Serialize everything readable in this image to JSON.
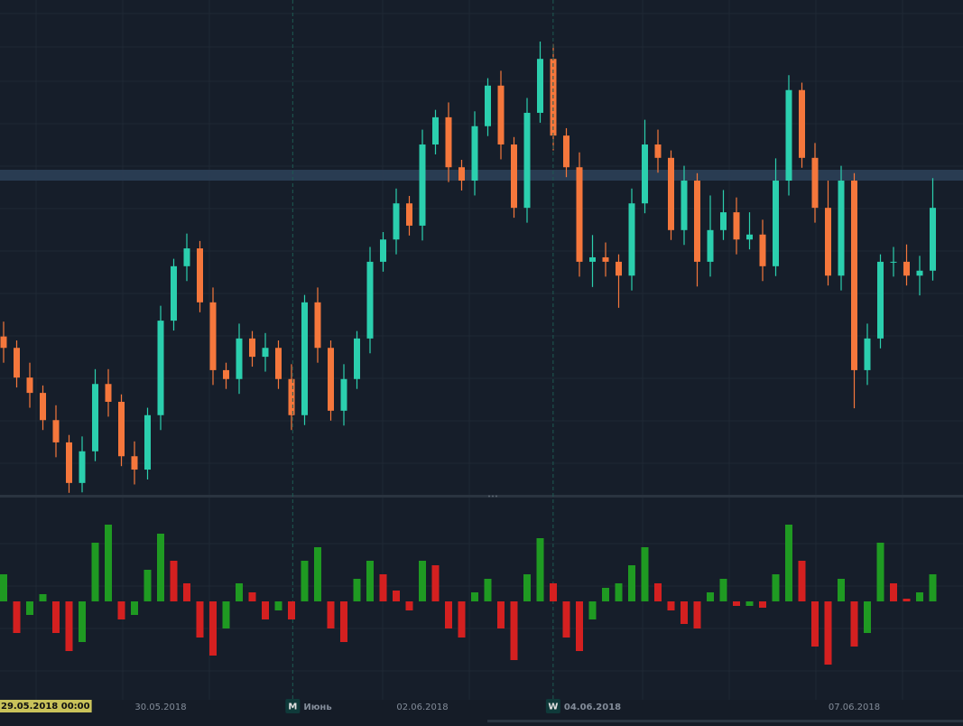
{
  "chart_data": [
    {
      "type": "candlestick",
      "categories": [
        "29.05.2018 00:00",
        null,
        null,
        null,
        null,
        null,
        null,
        null,
        null,
        null,
        null,
        null,
        "30.05.2018",
        null,
        null,
        null,
        null,
        null,
        null,
        null,
        null,
        null,
        null,
        null,
        "Июнь",
        null,
        null,
        null,
        null,
        null,
        null,
        null,
        "02.06.2018",
        null,
        null,
        null,
        null,
        null,
        null,
        null,
        null,
        null,
        null,
        null,
        null,
        "04.06.2018",
        null,
        null,
        null,
        null,
        null,
        null,
        null,
        null,
        null,
        null,
        null,
        null,
        null,
        null,
        null,
        null,
        null,
        null,
        null,
        "07.06.2018",
        null,
        null,
        null,
        null,
        null,
        null
      ],
      "markers": [
        null,
        null,
        null,
        null,
        null,
        null,
        null,
        null,
        null,
        null,
        null,
        null,
        null,
        null,
        null,
        null,
        null,
        null,
        null,
        null,
        null,
        null,
        null,
        null,
        "M",
        null,
        null,
        null,
        null,
        null,
        null,
        null,
        null,
        null,
        null,
        null,
        null,
        null,
        null,
        null,
        null,
        null,
        null,
        null,
        null,
        "W",
        null,
        null,
        null,
        null,
        null,
        null,
        null,
        null,
        null,
        null,
        null,
        null,
        null,
        null,
        null,
        null,
        null,
        null,
        null,
        null,
        null,
        null,
        null,
        null,
        null,
        null
      ],
      "open": [
        32.0,
        29.7,
        23.7,
        20.6,
        15.1,
        10.6,
        2.4,
        8.8,
        22.4,
        18.8,
        7.8,
        5.1,
        16.1,
        35.2,
        46.2,
        49.8,
        38.9,
        25.2,
        23.4,
        31.6,
        27.9,
        29.7,
        23.4,
        16.1,
        38.9,
        29.7,
        17.0,
        23.4,
        31.6,
        47.1,
        51.6,
        58.9,
        54.4,
        70.8,
        76.3,
        66.2,
        63.5,
        74.5,
        82.7,
        70.8,
        58.0,
        77.2,
        88.1,
        72.6,
        66.2,
        47.1,
        48.0,
        47.1,
        44.3,
        58.9,
        70.8,
        68.1,
        53.5,
        63.5,
        47.1,
        53.5,
        57.1,
        51.6,
        52.6,
        46.2,
        63.5,
        81.8,
        68.1,
        58.0,
        44.3,
        63.5,
        25.2,
        31.6,
        47.1,
        47.1,
        44.3,
        45.3
      ],
      "high": [
        35.0,
        31.2,
        26.7,
        22.1,
        18.1,
        12.1,
        11.8,
        25.4,
        25.4,
        20.3,
        10.8,
        17.6,
        38.2,
        47.7,
        52.8,
        51.3,
        41.9,
        26.7,
        34.6,
        33.1,
        32.7,
        31.2,
        26.4,
        40.4,
        41.9,
        31.2,
        26.4,
        33.1,
        50.1,
        53.1,
        61.9,
        60.4,
        73.8,
        77.8,
        79.3,
        67.7,
        77.5,
        84.2,
        85.7,
        72.3,
        80.2,
        91.6,
        91.1,
        74.1,
        69.2,
        52.5,
        51.0,
        48.6,
        61.9,
        75.8,
        73.8,
        69.6,
        66.5,
        65.0,
        60.5,
        61.6,
        60.1,
        57.1,
        55.6,
        68.0,
        84.8,
        83.3,
        71.1,
        63.5,
        66.5,
        65.0,
        34.6,
        48.6,
        50.1,
        50.6,
        48.3,
        64.0
      ],
      "low": [
        26.7,
        21.7,
        17.6,
        13.1,
        7.6,
        0.4,
        0.5,
        6.8,
        15.8,
        5.8,
        2.1,
        3.1,
        13.1,
        33.2,
        43.2,
        36.9,
        22.2,
        21.4,
        20.4,
        25.9,
        24.9,
        21.4,
        13.1,
        14.1,
        26.7,
        15.0,
        14.0,
        21.4,
        28.6,
        45.1,
        48.6,
        52.4,
        51.4,
        68.8,
        63.2,
        61.5,
        60.5,
        72.5,
        67.8,
        56.0,
        55.0,
        75.2,
        69.6,
        64.2,
        44.1,
        42.0,
        44.1,
        37.8,
        41.3,
        56.9,
        65.1,
        51.5,
        50.5,
        42.1,
        44.1,
        51.5,
        48.6,
        49.6,
        43.2,
        44.2,
        60.5,
        66.1,
        55.0,
        42.3,
        41.3,
        17.5,
        22.2,
        29.6,
        44.1,
        42.3,
        40.3,
        43.3
      ],
      "close": [
        29.7,
        23.7,
        20.6,
        15.1,
        10.6,
        2.4,
        8.8,
        22.4,
        18.8,
        7.8,
        5.1,
        16.1,
        35.2,
        46.2,
        49.8,
        38.9,
        25.2,
        23.4,
        31.6,
        27.9,
        29.7,
        23.4,
        16.1,
        38.9,
        29.7,
        17.0,
        23.4,
        31.6,
        47.1,
        51.6,
        58.9,
        54.4,
        70.8,
        76.3,
        66.2,
        63.5,
        74.5,
        82.7,
        70.8,
        58.0,
        77.2,
        88.1,
        72.6,
        66.2,
        47.1,
        48.0,
        47.1,
        44.3,
        58.9,
        70.8,
        68.1,
        53.5,
        63.5,
        47.1,
        53.5,
        57.1,
        51.6,
        52.6,
        46.2,
        63.5,
        81.8,
        68.1,
        58.0,
        44.3,
        63.5,
        25.2,
        31.6,
        47.1,
        47.1,
        44.3,
        45.3,
        58.0
      ],
      "ylim": [
        0,
        100
      ],
      "highlight_level": 64.6,
      "up_color": "#2bcfae",
      "down_color": "#f5773c"
    },
    {
      "type": "bar",
      "values": [
        0.3,
        -0.35,
        -0.15,
        0.08,
        -0.35,
        -0.55,
        -0.45,
        0.65,
        0.85,
        -0.2,
        -0.15,
        0.35,
        0.75,
        0.45,
        0.2,
        -0.4,
        -0.6,
        -0.3,
        0.2,
        0.1,
        -0.2,
        -0.1,
        -0.2,
        0.45,
        0.6,
        -0.3,
        -0.45,
        0.25,
        0.45,
        0.3,
        0.12,
        -0.1,
        0.45,
        0.4,
        -0.3,
        -0.4,
        0.1,
        0.25,
        -0.3,
        -0.65,
        0.3,
        0.7,
        0.2,
        -0.4,
        -0.55,
        -0.2,
        0.15,
        0.2,
        0.4,
        0.6,
        0.2,
        -0.1,
        -0.25,
        -0.3,
        0.1,
        0.25,
        -0.05,
        -0.05,
        -0.07,
        0.3,
        0.85,
        0.45,
        -0.5,
        -0.7,
        0.25,
        -0.5,
        -0.35,
        0.65,
        0.2,
        0.03,
        0.1,
        0.3
      ],
      "ylim": [
        -1.11,
        1.11
      ],
      "up_color": "#1f9a22",
      "down_color": "#d42020"
    }
  ]
}
